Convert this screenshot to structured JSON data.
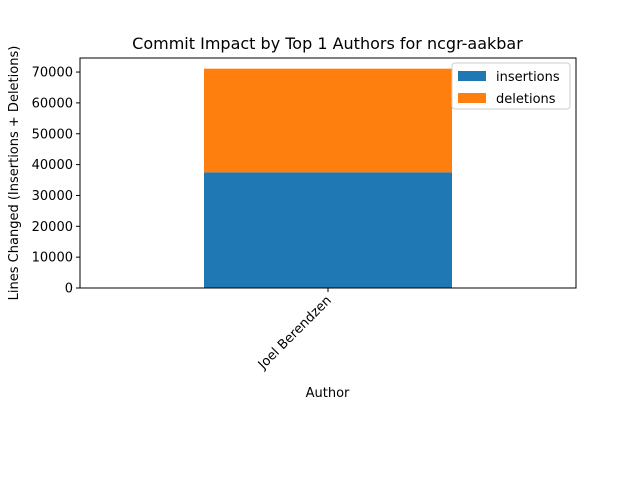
{
  "chart_data": {
    "type": "bar",
    "stacked": true,
    "title": "Commit Impact by Top 1 Authors for ncgr-aakbar",
    "xlabel": "Author",
    "ylabel": "Lines Changed (Insertions + Deletions)",
    "categories": [
      "Joel Berendzen"
    ],
    "series": [
      {
        "name": "insertions",
        "values": [
          37500
        ],
        "color": "#1f77b4"
      },
      {
        "name": "deletions",
        "values": [
          33600
        ],
        "color": "#ff7f0e"
      }
    ],
    "ylim": [
      0,
      74555
    ],
    "yticks": [
      0,
      10000,
      20000,
      30000,
      40000,
      50000,
      60000,
      70000
    ],
    "grid": false,
    "legend_position": "top-right"
  }
}
